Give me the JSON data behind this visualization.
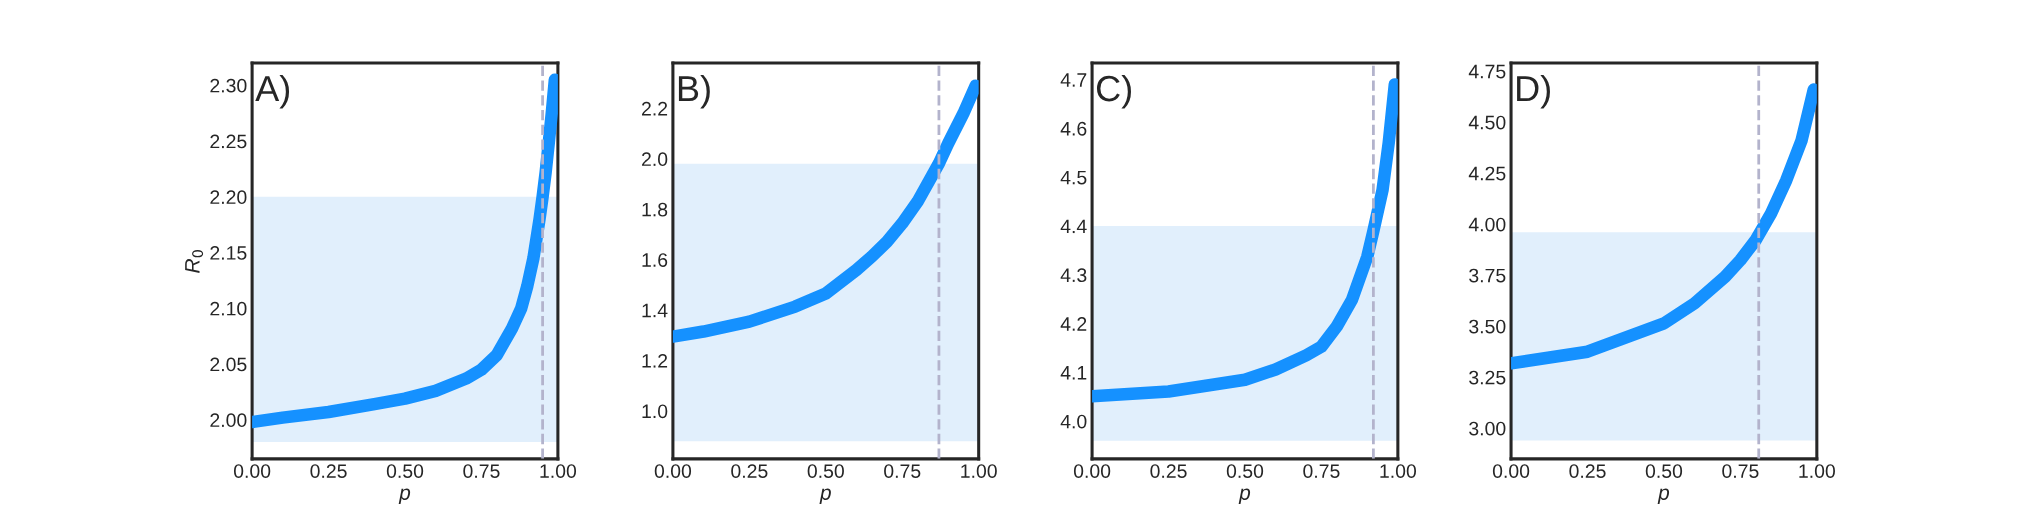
{
  "chart_data": [
    {
      "type": "line",
      "ylabel": "R$_{0}$",
      "xlabel": "p",
      "annotations": [
        "A)"
      ],
      "grid": false,
      "legend": false,
      "line_style": "solid",
      "marker": "none",
      "x": [
        0,
        0.1,
        0.25,
        0.4,
        0.5,
        0.6,
        0.7,
        0.75,
        0.8,
        0.85,
        0.88,
        0.9,
        0.92,
        0.94,
        0.95,
        0.96,
        0.97,
        0.98,
        0.99
      ],
      "series": [
        {
          "color": "#1591ff",
          "values": [
            1.998,
            2.002,
            2.007,
            2.014,
            2.019,
            2.026,
            2.037,
            2.045,
            2.058,
            2.082,
            2.1,
            2.12,
            2.145,
            2.18,
            2.2,
            2.222,
            2.248,
            2.275,
            2.305
          ]
        }
      ],
      "ref_lines": [
        {
          "axis": "x",
          "value": 0.95,
          "color": "#b3b3cc",
          "line_style": "dashed"
        }
      ],
      "bands": [
        {
          "axis": "y",
          "from": 1.98,
          "to": 2.2,
          "color": "#e1effc"
        }
      ],
      "xlim": [
        0,
        1
      ],
      "ylim": [
        1.965,
        2.32
      ],
      "xticks": [
        {
          "value": 0,
          "label": "0.00"
        },
        {
          "value": 0.25,
          "label": "0.25"
        },
        {
          "value": 0.5,
          "label": "0.50"
        },
        {
          "value": 0.75,
          "label": "0.75"
        },
        {
          "value": 1,
          "label": "1.00"
        }
      ],
      "yticks": [
        {
          "value": 2.0,
          "label": "2.00"
        },
        {
          "value": 2.05,
          "label": "2.05"
        },
        {
          "value": 2.1,
          "label": "2.10"
        },
        {
          "value": 2.15,
          "label": "2.15"
        },
        {
          "value": 2.2,
          "label": "2.20"
        },
        {
          "value": 2.25,
          "label": "2.25"
        },
        {
          "value": 2.3,
          "label": "2.30"
        }
      ]
    },
    {
      "type": "line",
      "xlabel": "p",
      "annotations": [
        "B)"
      ],
      "grid": false,
      "legend": false,
      "line_style": "solid",
      "marker": "none",
      "x": [
        0,
        0.1,
        0.25,
        0.4,
        0.5,
        0.6,
        0.65,
        0.7,
        0.75,
        0.8,
        0.87,
        0.9,
        0.95,
        0.99
      ],
      "series": [
        {
          "color": "#1591ff",
          "values": [
            1.295,
            1.315,
            1.354,
            1.414,
            1.466,
            1.559,
            1.612,
            1.671,
            1.744,
            1.83,
            1.982,
            2.06,
            2.18,
            2.29
          ]
        }
      ],
      "ref_lines": [
        {
          "axis": "x",
          "value": 0.87,
          "color": "#b3b3cc",
          "line_style": "dashed"
        }
      ],
      "bands": [
        {
          "axis": "y",
          "from": 0.88,
          "to": 1.98,
          "color": "#e1effc"
        }
      ],
      "xlim": [
        0,
        1
      ],
      "ylim": [
        0.81,
        2.38
      ],
      "xticks": [
        {
          "value": 0,
          "label": "0.00"
        },
        {
          "value": 0.25,
          "label": "0.25"
        },
        {
          "value": 0.5,
          "label": "0.50"
        },
        {
          "value": 0.75,
          "label": "0.75"
        },
        {
          "value": 1,
          "label": "1.00"
        }
      ],
      "yticks": [
        {
          "value": 1.0,
          "label": "1.0"
        },
        {
          "value": 1.2,
          "label": "1.2"
        },
        {
          "value": 1.4,
          "label": "1.4"
        },
        {
          "value": 1.6,
          "label": "1.6"
        },
        {
          "value": 1.8,
          "label": "1.8"
        },
        {
          "value": 2.0,
          "label": "2.0"
        },
        {
          "value": 2.2,
          "label": "2.2"
        }
      ]
    },
    {
      "type": "line",
      "xlabel": "p",
      "annotations": [
        "C)"
      ],
      "grid": false,
      "legend": false,
      "line_style": "solid",
      "marker": "none",
      "x": [
        0,
        0.25,
        0.5,
        0.6,
        0.7,
        0.75,
        0.8,
        0.85,
        0.9,
        0.92,
        0.95,
        0.97,
        0.99
      ],
      "series": [
        {
          "color": "#1591ff",
          "values": [
            4.051,
            4.061,
            4.085,
            4.106,
            4.135,
            4.153,
            4.194,
            4.249,
            4.337,
            4.39,
            4.474,
            4.57,
            4.69
          ]
        }
      ],
      "ref_lines": [
        {
          "axis": "x",
          "value": 0.92,
          "color": "#b3b3cc",
          "line_style": "dashed"
        }
      ],
      "bands": [
        {
          "axis": "y",
          "from": 3.96,
          "to": 4.4,
          "color": "#e1effc"
        }
      ],
      "xlim": [
        0,
        1
      ],
      "ylim": [
        3.923,
        4.734
      ],
      "xticks": [
        {
          "value": 0,
          "label": "0.00"
        },
        {
          "value": 0.25,
          "label": "0.25"
        },
        {
          "value": 0.5,
          "label": "0.50"
        },
        {
          "value": 0.75,
          "label": "0.75"
        },
        {
          "value": 1,
          "label": "1.00"
        }
      ],
      "yticks": [
        {
          "value": 4.0,
          "label": "4.0"
        },
        {
          "value": 4.1,
          "label": "4.1"
        },
        {
          "value": 4.2,
          "label": "4.2"
        },
        {
          "value": 4.3,
          "label": "4.3"
        },
        {
          "value": 4.4,
          "label": "4.4"
        },
        {
          "value": 4.5,
          "label": "4.5"
        },
        {
          "value": 4.6,
          "label": "4.6"
        },
        {
          "value": 4.7,
          "label": "4.7"
        }
      ]
    },
    {
      "type": "line",
      "xlabel": "p",
      "annotations": [
        "D)"
      ],
      "grid": false,
      "legend": false,
      "line_style": "solid",
      "marker": "none",
      "x": [
        0,
        0.25,
        0.5,
        0.6,
        0.7,
        0.75,
        0.8,
        0.85,
        0.9,
        0.95,
        0.99
      ],
      "series": [
        {
          "color": "#1591ff",
          "values": [
            3.318,
            3.375,
            3.514,
            3.612,
            3.742,
            3.824,
            3.922,
            4.052,
            4.215,
            4.41,
            4.66
          ]
        }
      ],
      "ref_lines": [
        {
          "axis": "x",
          "value": 0.81,
          "color": "#b3b3cc",
          "line_style": "dashed"
        }
      ],
      "bands": [
        {
          "axis": "y",
          "from": 2.94,
          "to": 3.96,
          "color": "#e1effc"
        }
      ],
      "xlim": [
        0,
        1
      ],
      "ylim": [
        2.85,
        4.79
      ],
      "xticks": [
        {
          "value": 0,
          "label": "0.00"
        },
        {
          "value": 0.25,
          "label": "0.25"
        },
        {
          "value": 0.5,
          "label": "0.50"
        },
        {
          "value": 0.75,
          "label": "0.75"
        },
        {
          "value": 1,
          "label": "1.00"
        }
      ],
      "yticks": [
        {
          "value": 3.0,
          "label": "3.00"
        },
        {
          "value": 3.25,
          "label": "3.25"
        },
        {
          "value": 3.5,
          "label": "3.50"
        },
        {
          "value": 3.75,
          "label": "3.75"
        },
        {
          "value": 4.0,
          "label": "4.00"
        },
        {
          "value": 4.25,
          "label": "4.25"
        },
        {
          "value": 4.5,
          "label": "4.50"
        },
        {
          "value": 4.75,
          "label": "4.75"
        }
      ]
    }
  ]
}
